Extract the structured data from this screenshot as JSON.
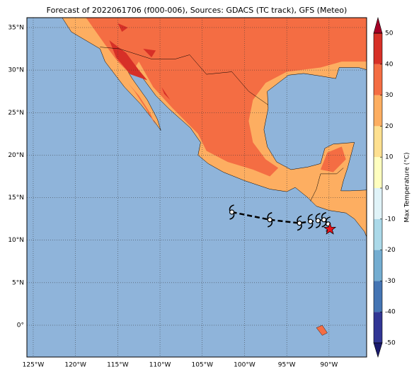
{
  "chart_data": {
    "type": "map",
    "title": "Forecast of 2022061706 (f000-006), Sources: GDACS (TC track), GFS (Meteo)",
    "xlim": [
      -125.75,
      -85.55
    ],
    "ylim": [
      -3.74,
      36.16
    ],
    "xticks": [
      {
        "value": -125,
        "label": "125°W"
      },
      {
        "value": -120,
        "label": "120°W"
      },
      {
        "value": -115,
        "label": "115°W"
      },
      {
        "value": -110,
        "label": "110°W"
      },
      {
        "value": -105,
        "label": "105°W"
      },
      {
        "value": -100,
        "label": "100°W"
      },
      {
        "value": -95,
        "label": "95°W"
      },
      {
        "value": -90,
        "label": "90°W"
      }
    ],
    "yticks": [
      {
        "value": 0,
        "label": "0°"
      },
      {
        "value": 5,
        "label": "5°N"
      },
      {
        "value": 10,
        "label": "10°N"
      },
      {
        "value": 15,
        "label": "15°N"
      },
      {
        "value": 20,
        "label": "20°N"
      },
      {
        "value": 25,
        "label": "25°N"
      },
      {
        "value": 30,
        "label": "30°N"
      },
      {
        "value": 35,
        "label": "35°N"
      }
    ],
    "grid": true,
    "track": {
      "lon": [
        -101.5,
        -97,
        -93.5,
        -92.2,
        -91.3,
        -90.6,
        -90.1
      ],
      "lat": [
        13.3,
        12.4,
        12.0,
        12.2,
        12.3,
        12.4,
        11.9
      ]
    },
    "current": {
      "lon": -89.9,
      "lat": 11.3
    },
    "colorbar": {
      "label": "Max Temperature (°C)",
      "lim": [
        -50,
        50
      ],
      "ticks": [
        50,
        40,
        30,
        20,
        10,
        0,
        -10,
        -20,
        -30,
        -40,
        -50
      ],
      "colors": [
        "#313695",
        "#4575b4",
        "#74add1",
        "#abd9e9",
        "#e0f3f8",
        "#ffffbf",
        "#fee090",
        "#fdae61",
        "#f46d43",
        "#d73027"
      ],
      "under_color": "#1a1a6e",
      "over_color": "#a50026"
    }
  }
}
